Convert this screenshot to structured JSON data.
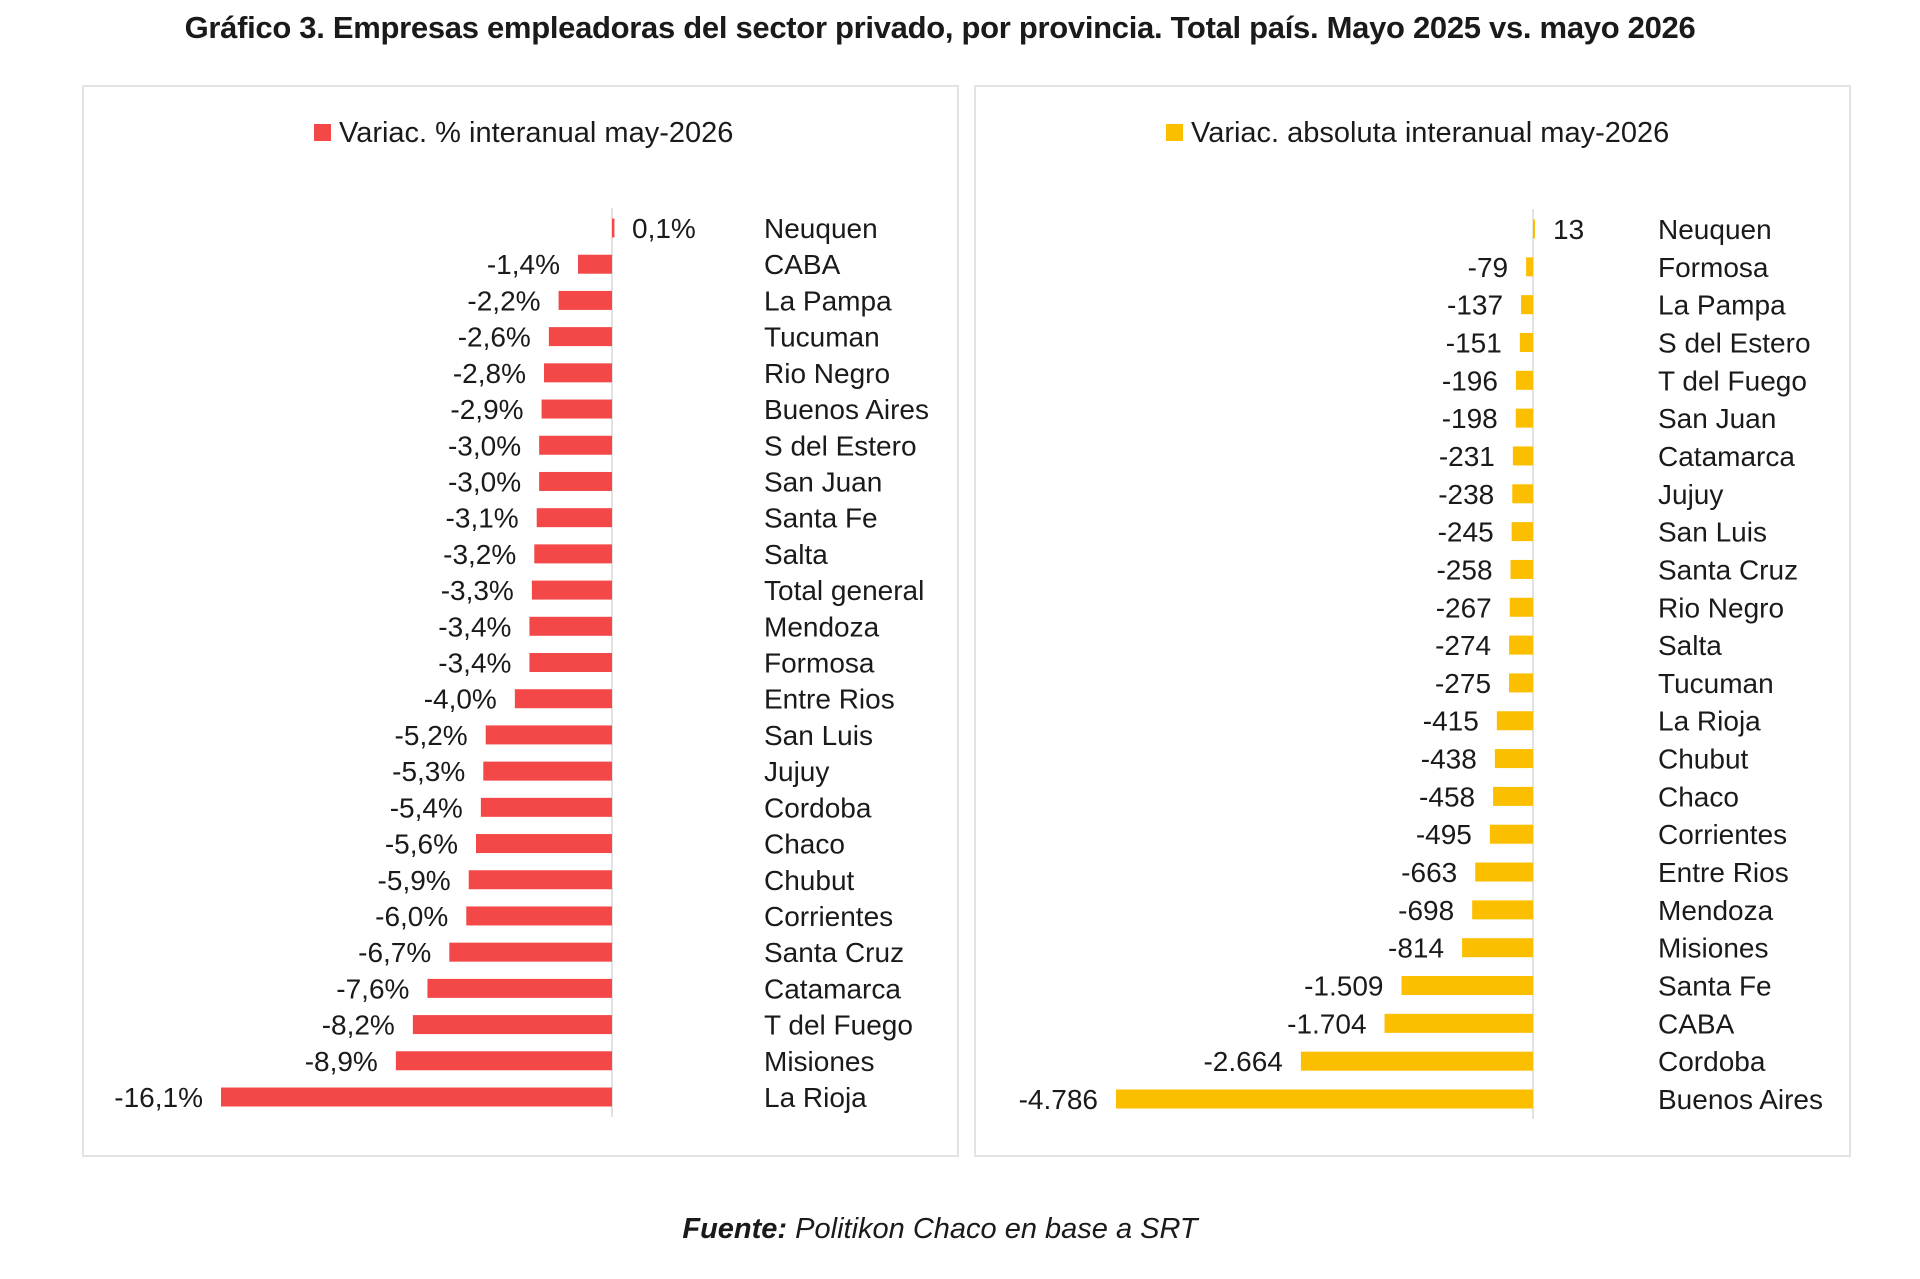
{
  "title": "Gráfico 3. Empresas empleadoras del sector privado, por provincia. Total país. Mayo 2025 vs. mayo 2026",
  "source": {
    "label": "Fuente:",
    "text": " Politikon Chaco en base a SRT"
  },
  "colors": {
    "left_bar": "#f44848",
    "right_bar": "#fcbf00"
  },
  "chart_data": [
    {
      "type": "bar",
      "orientation": "horizontal",
      "legend": "Variac. % interanual may-2026",
      "legend_placement": "top",
      "grid": false,
      "color": "#f44848",
      "categories": [
        "Neuquen",
        "CABA",
        "La Pampa",
        "Tucuman",
        "Rio Negro",
        "Buenos Aires",
        "S del Estero",
        "San Juan",
        "Santa Fe",
        "Salta",
        "Total general",
        "Mendoza",
        "Formosa",
        "Entre Rios",
        "San Luis",
        "Jujuy",
        "Cordoba",
        "Chaco",
        "Chubut",
        "Corrientes",
        "Santa Cruz",
        "Catamarca",
        "T del Fuego",
        "Misiones",
        "La Rioja"
      ],
      "values": [
        0.1,
        -1.4,
        -2.2,
        -2.6,
        -2.8,
        -2.9,
        -3.0,
        -3.0,
        -3.1,
        -3.2,
        -3.3,
        -3.4,
        -3.4,
        -4.0,
        -5.2,
        -5.3,
        -5.4,
        -5.6,
        -5.9,
        -6.0,
        -6.7,
        -7.6,
        -8.2,
        -8.9,
        -16.1
      ],
      "labels": [
        "0,1%",
        "-1,4%",
        "-2,2%",
        "-2,6%",
        "-2,8%",
        "-2,9%",
        "-3,0%",
        "-3,0%",
        "-3,1%",
        "-3,2%",
        "-3,3%",
        "-3,4%",
        "-3,4%",
        "-4,0%",
        "-5,2%",
        "-5,3%",
        "-5,4%",
        "-5,6%",
        "-5,9%",
        "-6,0%",
        "-6,7%",
        "-7,6%",
        "-8,2%",
        "-8,9%",
        "-16,1%"
      ],
      "xlim": [
        -16.1,
        0.1
      ]
    },
    {
      "type": "bar",
      "orientation": "horizontal",
      "legend": "Variac. absoluta interanual may-2026",
      "legend_placement": "top",
      "grid": false,
      "color": "#fcbf00",
      "categories": [
        "Neuquen",
        "Formosa",
        "La Pampa",
        "S del Estero",
        "T del Fuego",
        "San Juan",
        "Catamarca",
        "Jujuy",
        "San Luis",
        "Santa Cruz",
        "Rio Negro",
        "Salta",
        "Tucuman",
        "La Rioja",
        "Chubut",
        "Chaco",
        "Corrientes",
        "Entre Rios",
        "Mendoza",
        "Misiones",
        "Santa Fe",
        "CABA",
        "Cordoba",
        "Buenos Aires"
      ],
      "values": [
        13,
        -79,
        -137,
        -151,
        -196,
        -198,
        -231,
        -238,
        -245,
        -258,
        -267,
        -274,
        -275,
        -415,
        -438,
        -458,
        -495,
        -663,
        -698,
        -814,
        -1509,
        -1704,
        -2664,
        -4786
      ],
      "labels": [
        "13",
        "-79",
        "-137",
        "-151",
        "-196",
        "-198",
        "-231",
        "-238",
        "-245",
        "-258",
        "-267",
        "-274",
        "-275",
        "-415",
        "-438",
        "-458",
        "-495",
        "-663",
        "-698",
        "-814",
        "-1.509",
        "-1.704",
        "-2.664",
        "-4.786"
      ],
      "xlim": [
        -4786,
        13
      ]
    }
  ]
}
